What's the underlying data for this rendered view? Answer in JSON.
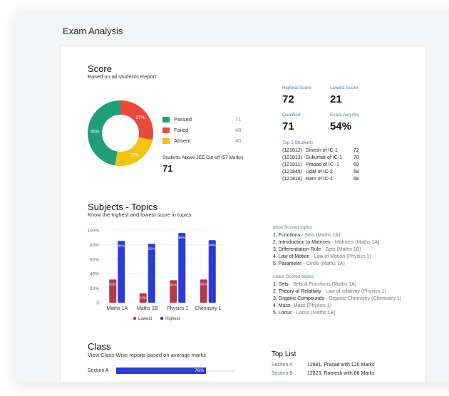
{
  "page": {
    "title": "Exam Analysis"
  },
  "score": {
    "heading": "Score",
    "subtitle": "Based on all students Report",
    "donut": [
      {
        "name": "Passed",
        "percent": 45,
        "label": "45%",
        "color": "#1f9e7a"
      },
      {
        "name": "Failed",
        "percent": 27,
        "label": "27%",
        "color": "#e64b3b"
      },
      {
        "name": "Absent",
        "percent": 23,
        "label": "23%",
        "color": "#f1c40f"
      }
    ],
    "legend": [
      {
        "label": "Passed",
        "value": "71",
        "color": "#1f9e7a"
      },
      {
        "label": "Failed",
        "value": "48",
        "color": "#e64b3b"
      },
      {
        "label": "Absent",
        "value": "40",
        "color": "#f1c40f"
      }
    ],
    "cutoff_label": "Students Above JEE Cut-off (57 Marks)",
    "cutoff_value": "71",
    "stats": {
      "highest_label": "Highest Score",
      "highest_value": "72",
      "lowest_label": "Lowest Score",
      "lowest_value": "21",
      "qualified_label": "Qualified",
      "qualified_value": "71",
      "avg_label": "Exam Avg (%)",
      "avg_value": "54%"
    },
    "top5": {
      "title": "Top 5 Students",
      "rows": [
        {
          "id": "(121812)",
          "name": "Dinesh of IC-1",
          "score": "72"
        },
        {
          "id": "(121813)",
          "name": "Sukumar of IC-1",
          "score": "70"
        },
        {
          "id": "(121811)",
          "name": "Prasad of IC -1",
          "score": "69"
        },
        {
          "id": "(121845)",
          "name": "Udat of IC-2",
          "score": "68"
        },
        {
          "id": "(121816)",
          "name": "Ram of IC-1",
          "score": "68"
        }
      ]
    }
  },
  "subjects": {
    "heading": "Subjects - Topics",
    "subtitle": "Know the highest and lowest score in topics",
    "most_title": "Most Scored topics",
    "most": [
      {
        "num": "1.",
        "topic": "Functions",
        "detail": " - Sets (Maths 1A)"
      },
      {
        "num": "2.",
        "topic": "Introduction to Matrices",
        "detail": " - Matrices (Maths 1A)"
      },
      {
        "num": "3.",
        "topic": "Differentiation Rule",
        "detail": " - Sets (Maths 1B)"
      },
      {
        "num": "4.",
        "topic": "Law of Motion",
        "detail": " - Law of Motion (Physics 1)"
      },
      {
        "num": "5.",
        "topic": "Parameter",
        "detail": " - Circle (Maths 1A)"
      }
    ],
    "least_title": "Least Scored topics",
    "least": [
      {
        "num": "1.",
        "topic": "Sets",
        "detail": " - Sets & Functions (Maths 1A)"
      },
      {
        "num": "2.",
        "topic": "Theory of Relativity",
        "detail": " - Law of relativity (Physics 1)"
      },
      {
        "num": "3.",
        "topic": "Organic Compounds",
        "detail": " - Organic Chemistry (Chemistry 1)"
      },
      {
        "num": "4.",
        "topic": "Mass",
        "detail": "- Mass (Physics 1)"
      },
      {
        "num": "5.",
        "topic": "Locus",
        "detail": " - Locus (Maths 1B)"
      }
    ]
  },
  "chart_data": {
    "type": "bar",
    "categories": [
      "Maths 1A",
      "Maths 1B",
      "Physics 1",
      "Chemistry 1"
    ],
    "series": [
      {
        "name": "Lowest",
        "values": [
          32,
          13,
          31,
          32
        ],
        "labels": [
          "32%",
          "13%",
          "31%",
          "32%"
        ],
        "color": "#b53a4a"
      },
      {
        "name": "Highest",
        "values": [
          85,
          81,
          96,
          86
        ],
        "labels": [
          "85%",
          "81%",
          "96%",
          "86%"
        ],
        "color": "#2a3cd6"
      }
    ],
    "yticks": [
      "100%",
      "80%",
      "60%",
      "40%",
      "20%",
      "0"
    ],
    "ylim": [
      0,
      100
    ],
    "legend_position": "bottom"
  },
  "class": {
    "heading": "Class",
    "subtitle": "View Class-Wise reports based on average marks",
    "sections": [
      {
        "label": "Section A",
        "percent": 76,
        "value_label": "76%"
      }
    ]
  },
  "toplist": {
    "title": "Top List",
    "rows": [
      {
        "section": "Section A",
        "text": "12881, Prasad with 120 Marks"
      },
      {
        "section": "Section B",
        "text": "12823, Ramesh with 88 Marks"
      }
    ]
  }
}
